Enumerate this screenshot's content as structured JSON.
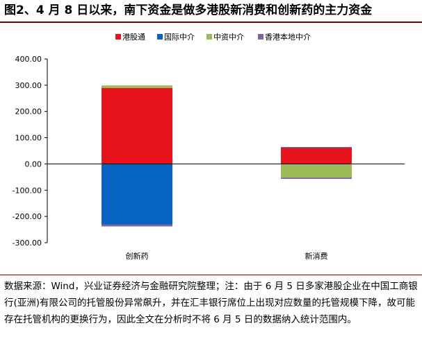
{
  "title": "图2、4 月 8 日以来，南下资金是做多港股新消费和创新药的主力资金",
  "source_note": "数据来源：Wind，兴业证券经济与金融研究院整理；注：由于 6 月 5 日多家港股企业在中国工商银行(亚洲)有限公司的托管股份异常飙升，并在汇丰银行席位上出现对应数量的托管规模下降，故可能存在托管机构的更换行为，因此全文在分析时不将 6 月 5 日的数据纳入统计范围内。",
  "chart_data": {
    "type": "bar",
    "stacked": true,
    "title": "",
    "xlabel": "",
    "ylabel": "",
    "categories": [
      "创新药",
      "新消费"
    ],
    "ylim": [
      -300,
      400
    ],
    "yticks": [
      400,
      300,
      200,
      100,
      0,
      -100,
      -200,
      -300
    ],
    "ytick_labels": [
      "400.00",
      "300.00",
      "200.00",
      "100.00",
      "0.00",
      "-100.00",
      "-200.00",
      "-300.00"
    ],
    "legend_position": "top",
    "grid": false,
    "series": [
      {
        "name": "港股通",
        "color": "#e8141c",
        "values": [
          289,
          62
        ]
      },
      {
        "name": "国际中介",
        "color": "#0563c1",
        "values": [
          -230,
          2
        ]
      },
      {
        "name": "中资中介",
        "color": "#9bbb59",
        "values": [
          10,
          -52
        ]
      },
      {
        "name": "香港本地中介",
        "color": "#8064a2",
        "values": [
          -8,
          -5
        ]
      }
    ]
  }
}
